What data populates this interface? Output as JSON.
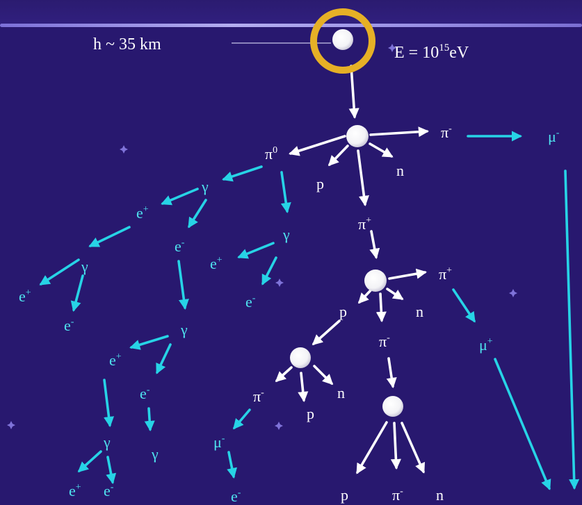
{
  "header": {
    "altitude": "h ~ 35 km",
    "energy_prefix": "E = 10",
    "energy_exp": "15",
    "energy_unit": "eV"
  },
  "colors": {
    "background": "#28186f",
    "arrow_white": "#ffffff",
    "arrow_cyan": "#27d3e6",
    "highlight_ring": "#e6b026"
  },
  "labels": {
    "pi0": {
      "base": "π",
      "sup": "0"
    },
    "pi_minus_1": {
      "base": "π",
      "sup": "-"
    },
    "mu_minus_1": {
      "base": "μ",
      "sup": "-"
    },
    "p_1": {
      "base": "p",
      "sup": ""
    },
    "n_1": {
      "base": "n",
      "sup": ""
    },
    "pi_plus_1": {
      "base": "π",
      "sup": "+"
    },
    "gamma_1": {
      "base": "γ",
      "sup": ""
    },
    "e_plus_1": {
      "base": "e",
      "sup": "+"
    },
    "e_minus_1": {
      "base": "e",
      "sup": "-"
    },
    "gamma_2": {
      "base": "γ",
      "sup": ""
    },
    "e_plus_2": {
      "base": "e",
      "sup": "+"
    },
    "gamma_3": {
      "base": "γ",
      "sup": ""
    },
    "e_plus_3": {
      "base": "e",
      "sup": "+"
    },
    "e_minus_2": {
      "base": "e",
      "sup": "-"
    },
    "e_minus_3": {
      "base": "e",
      "sup": "-"
    },
    "gamma_4": {
      "base": "γ",
      "sup": ""
    },
    "e_plus_4": {
      "base": "e",
      "sup": "+"
    },
    "e_minus_4": {
      "base": "e",
      "sup": "-"
    },
    "gamma_5": {
      "base": "γ",
      "sup": ""
    },
    "gamma_6": {
      "base": "γ",
      "sup": ""
    },
    "e_plus_5": {
      "base": "e",
      "sup": "+"
    },
    "e_minus_5": {
      "base": "e",
      "sup": "-"
    },
    "p_2": {
      "base": "p",
      "sup": ""
    },
    "n_2": {
      "base": "n",
      "sup": ""
    },
    "pi_plus_2": {
      "base": "π",
      "sup": "+"
    },
    "mu_plus": {
      "base": "μ",
      "sup": "+"
    },
    "pi_minus_2": {
      "base": "π",
      "sup": "-"
    },
    "pi_minus_3": {
      "base": "π",
      "sup": "-"
    },
    "n_3": {
      "base": "n",
      "sup": ""
    },
    "p_3": {
      "base": "p",
      "sup": ""
    },
    "mu_minus_2": {
      "base": "μ",
      "sup": "-"
    },
    "e_minus_6": {
      "base": "e",
      "sup": "-"
    },
    "p_4": {
      "base": "p",
      "sup": ""
    },
    "pi_minus_4": {
      "base": "π",
      "sup": "-"
    },
    "n_4": {
      "base": "n",
      "sup": ""
    }
  }
}
